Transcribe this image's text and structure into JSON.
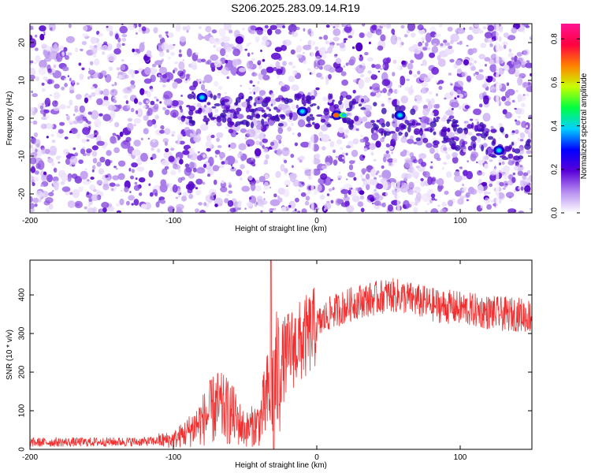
{
  "title": "S206.2025.283.09.14.R19",
  "chart_data": [
    {
      "type": "heatmap",
      "xlabel": "Height of straight line (km)",
      "ylabel": "Frequency (Hz)",
      "xlim": [
        -200,
        150
      ],
      "ylim": [
        -25,
        25
      ],
      "xticks": [
        -200,
        -100,
        0,
        100
      ],
      "yticks": [
        20,
        10,
        0,
        -10,
        -20
      ],
      "colorbar": {
        "label": "Normalized spectral amplitude",
        "range": [
          0,
          0.87
        ],
        "ticks": [
          0.0,
          0.2,
          0.4,
          0.6,
          0.8
        ],
        "colors": [
          "#ffffff",
          "#b58cf0",
          "#5a00d8",
          "#0000ff",
          "#00d0ff",
          "#00ff40",
          "#c8ff00",
          "#ff8000",
          "#ff0040",
          "#ff1493"
        ]
      },
      "hotspots": [
        {
          "x": -80,
          "y": 5.5,
          "amp": 0.35
        },
        {
          "x": -10,
          "y": 1.8,
          "amp": 0.3
        },
        {
          "x": 14,
          "y": 0.8,
          "amp": 0.8
        },
        {
          "x": 58,
          "y": 0.8,
          "amp": 0.4
        },
        {
          "x": 127,
          "y": -8.5,
          "amp": 0.35
        }
      ]
    },
    {
      "type": "line",
      "xlabel": "Height of straight line (km)",
      "ylabel": "SNR (10 * v/v)",
      "xlim": [
        -200,
        150
      ],
      "ylim": [
        0,
        490
      ],
      "xticks": [
        -200,
        -100,
        0,
        100
      ],
      "yticks": [
        0,
        100,
        200,
        300,
        400
      ],
      "color": "#f03030",
      "profile_x": [
        -200,
        -120,
        -100,
        -90,
        -80,
        -70,
        -60,
        -50,
        -40,
        -35,
        -30,
        -25,
        -20,
        -15,
        -10,
        -5,
        0,
        10,
        20,
        30,
        40,
        50,
        60,
        70,
        80,
        90,
        100,
        110,
        120,
        130,
        140,
        150
      ],
      "profile_y": [
        18,
        20,
        25,
        45,
        75,
        110,
        95,
        50,
        70,
        130,
        170,
        220,
        250,
        270,
        280,
        300,
        320,
        355,
        370,
        385,
        390,
        400,
        395,
        385,
        375,
        370,
        365,
        360,
        355,
        350,
        350,
        345
      ]
    }
  ]
}
